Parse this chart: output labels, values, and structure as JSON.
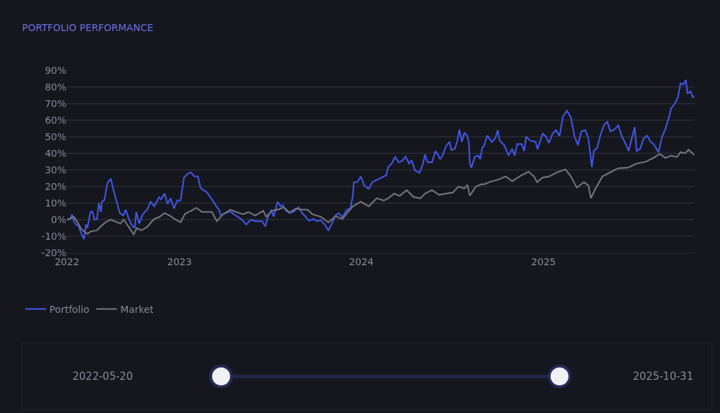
{
  "chart_data": {
    "type": "line",
    "title": "PORTFOLIO PERFORMANCE",
    "xlim": [
      "2022-05-20",
      "2025-10-31"
    ],
    "xticks": [
      {
        "value": "2022-05-20",
        "label": "2022"
      },
      {
        "value": "2023-01-01",
        "label": "2023"
      },
      {
        "value": "2024-01-01",
        "label": "2024"
      },
      {
        "value": "2025-01-01",
        "label": "2025"
      }
    ],
    "ylim": [
      -20,
      90
    ],
    "yticks": [
      {
        "value": -20,
        "label": "-20%"
      },
      {
        "value": -10,
        "label": "-10%"
      },
      {
        "value": 0,
        "label": "0%"
      },
      {
        "value": 10,
        "label": "10%"
      },
      {
        "value": 20,
        "label": "20%"
      },
      {
        "value": 30,
        "label": "30%"
      },
      {
        "value": 40,
        "label": "40%"
      },
      {
        "value": 50,
        "label": "50%"
      },
      {
        "value": 60,
        "label": "60%"
      },
      {
        "value": 70,
        "label": "70%"
      },
      {
        "value": 80,
        "label": "80%"
      },
      {
        "value": 90,
        "label": "90%"
      }
    ],
    "grid": "y",
    "legend": "bottom left",
    "marker": "none",
    "line_style": "solid",
    "annotations": [
      "2022-05-20",
      "2025-10-31"
    ],
    "series": [
      {
        "name": "Portfolio",
        "color": "#3f56e0",
        "x": [
          "2022-05-20",
          "2022-05-27",
          "2022-05-30",
          "2022-06-03",
          "2022-06-07",
          "2022-06-12",
          "2022-06-17",
          "2022-06-23",
          "2022-06-27",
          "2022-06-30",
          "2022-07-06",
          "2022-07-10",
          "2022-07-14",
          "2022-07-19",
          "2022-07-23",
          "2022-07-27",
          "2022-07-29",
          "2022-08-03",
          "2022-08-09",
          "2022-08-16",
          "2022-08-22",
          "2022-08-29",
          "2022-09-03",
          "2022-09-10",
          "2022-09-15",
          "2022-09-21",
          "2022-09-28",
          "2022-10-03",
          "2022-10-06",
          "2022-10-12",
          "2022-10-19",
          "2022-10-28",
          "2022-11-04",
          "2022-11-11",
          "2022-11-21",
          "2022-11-25",
          "2022-12-02",
          "2022-12-08",
          "2022-12-14",
          "2022-12-21",
          "2022-12-27",
          "2023-01-03",
          "2023-01-10",
          "2023-01-17",
          "2023-01-24",
          "2023-01-31",
          "2023-02-07",
          "2023-02-12",
          "2023-02-18",
          "2023-02-25",
          "2023-03-07",
          "2023-03-16",
          "2023-03-21",
          "2023-03-25",
          "2023-04-03",
          "2023-04-13",
          "2023-04-20",
          "2023-04-29",
          "2023-05-06",
          "2023-05-15",
          "2023-05-24",
          "2023-06-02",
          "2023-06-16",
          "2023-06-22",
          "2023-06-27",
          "2023-07-04",
          "2023-07-09",
          "2023-07-17",
          "2023-07-23",
          "2023-07-27",
          "2023-08-03",
          "2023-08-10",
          "2023-08-17",
          "2023-08-28",
          "2023-09-04",
          "2023-09-11",
          "2023-09-18",
          "2023-09-27",
          "2023-10-04",
          "2023-10-11",
          "2023-10-18",
          "2023-10-27",
          "2023-11-03",
          "2023-11-10",
          "2023-11-17",
          "2023-11-24",
          "2023-12-03",
          "2023-12-10",
          "2023-12-15",
          "2023-12-17",
          "2023-12-24",
          "2023-12-31",
          "2024-01-07",
          "2024-01-16",
          "2024-01-23",
          "2024-02-01",
          "2024-02-11",
          "2024-02-20",
          "2024-02-24",
          "2024-03-02",
          "2024-03-09",
          "2024-03-16",
          "2024-03-23",
          "2024-03-30",
          "2024-04-06",
          "2024-04-11",
          "2024-04-18",
          "2024-04-27",
          "2024-05-04",
          "2024-05-08",
          "2024-05-13",
          "2024-05-22",
          "2024-05-29",
          "2024-06-03",
          "2024-06-07",
          "2024-06-12",
          "2024-06-19",
          "2024-06-26",
          "2024-06-30",
          "2024-07-07",
          "2024-07-12",
          "2024-07-16",
          "2024-07-21",
          "2024-07-26",
          "2024-08-01",
          "2024-08-04",
          "2024-08-06",
          "2024-08-09",
          "2024-08-16",
          "2024-08-23",
          "2024-08-27",
          "2024-08-31",
          "2024-09-03",
          "2024-09-10",
          "2024-09-19",
          "2024-09-26",
          "2024-10-01",
          "2024-10-05",
          "2024-10-14",
          "2024-10-23",
          "2024-10-30",
          "2024-11-04",
          "2024-11-09",
          "2024-11-18",
          "2024-11-23",
          "2024-11-27",
          "2024-12-06",
          "2024-12-16",
          "2024-12-20",
          "2024-12-30",
          "2025-01-05",
          "2025-01-12",
          "2025-01-19",
          "2025-01-26",
          "2025-02-02",
          "2025-02-09",
          "2025-02-17",
          "2025-02-25",
          "2025-03-04",
          "2025-03-11",
          "2025-03-18",
          "2025-03-26",
          "2025-04-01",
          "2025-04-05",
          "2025-04-08",
          "2025-04-12",
          "2025-04-19",
          "2025-04-26",
          "2025-05-03",
          "2025-05-09",
          "2025-05-15",
          "2025-05-22",
          "2025-05-31",
          "2025-06-07",
          "2025-06-14",
          "2025-06-21",
          "2025-06-28",
          "2025-07-03",
          "2025-07-07",
          "2025-07-14",
          "2025-07-21",
          "2025-07-28",
          "2025-08-04",
          "2025-08-10",
          "2025-08-20",
          "2025-08-27",
          "2025-09-03",
          "2025-09-09",
          "2025-09-14",
          "2025-09-21",
          "2025-09-28",
          "2025-10-03",
          "2025-10-09",
          "2025-10-14",
          "2025-10-17",
          "2025-10-23",
          "2025-10-28",
          "2025-10-31"
        ],
        "values": [
          0,
          0.4,
          3.2,
          -1,
          -3,
          -3.8,
          -7.9,
          -11.8,
          -3,
          -5,
          4.6,
          4.9,
          0,
          0.4,
          10,
          4.6,
          10.8,
          11.8,
          22,
          24.7,
          17,
          9.4,
          3.9,
          2.5,
          6,
          0.4,
          -3.8,
          -5.1,
          4.6,
          -2.4,
          3.2,
          6,
          10.8,
          8,
          13.6,
          12.2,
          15.7,
          9.4,
          12.9,
          6.7,
          11.5,
          11.5,
          25.4,
          27.5,
          28.5,
          26,
          26,
          19.2,
          17.8,
          16.4,
          12.2,
          8,
          6,
          2.5,
          3.9,
          4.9,
          3.2,
          1.5,
          0,
          -3,
          0,
          -1,
          -1,
          -4,
          1.1,
          6,
          1.8,
          10.8,
          8,
          8.8,
          5.3,
          3.9,
          4.6,
          7.4,
          3.9,
          1.8,
          -0.7,
          0.4,
          -1,
          -0.3,
          -2.4,
          -6.5,
          -2.4,
          2.5,
          3.9,
          1.5,
          6,
          6.7,
          14.3,
          22.6,
          22.6,
          26,
          20.6,
          18.5,
          22.6,
          24,
          25.4,
          26.8,
          31.7,
          33.8,
          38,
          34.6,
          35.4,
          38,
          33.8,
          35.8,
          29.6,
          28.2,
          33.8,
          39.3,
          34.6,
          34.6,
          41.4,
          39.3,
          36.5,
          38.6,
          44.2,
          47,
          42,
          42.8,
          47.6,
          54.3,
          47,
          52.5,
          50.4,
          46.3,
          33.8,
          31.3,
          38,
          38.6,
          36.5,
          43.5,
          44.2,
          50.7,
          46.9,
          49,
          53.9,
          47.6,
          44.9,
          38.6,
          42.8,
          38.6,
          45.6,
          45.6,
          41.4,
          50,
          47.6,
          46.9,
          42.4,
          51.8,
          50.4,
          46.3,
          51.8,
          53.9,
          50.4,
          62.2,
          65.7,
          61.5,
          50.4,
          44.9,
          53.3,
          54,
          49,
          39.3,
          31.7,
          41.4,
          43.5,
          51.8,
          57.4,
          59,
          53.3,
          54,
          56.8,
          50.4,
          46.3,
          41.4,
          50,
          55.8,
          41.4,
          42.8,
          49,
          50.7,
          46.9,
          45.6,
          40.7,
          50,
          54.9,
          60.8,
          67,
          69.7,
          73.9,
          82.2,
          81.5,
          84.3,
          76,
          77.4,
          73.9,
          74.6
        ]
      },
      {
        "name": "Market",
        "color": "#72727e",
        "x": [
          "2022-05-20",
          "2022-06-03",
          "2022-06-09",
          "2022-06-18",
          "2022-06-30",
          "2022-07-06",
          "2022-07-19",
          "2022-07-28",
          "2022-08-05",
          "2022-08-15",
          "2022-08-24",
          "2022-09-04",
          "2022-09-11",
          "2022-09-21",
          "2022-10-01",
          "2022-10-07",
          "2022-10-16",
          "2022-10-28",
          "2022-11-11",
          "2022-11-21",
          "2022-12-02",
          "2022-12-14",
          "2022-12-22",
          "2023-01-03",
          "2023-01-12",
          "2023-01-24",
          "2023-02-04",
          "2023-02-15",
          "2023-03-07",
          "2023-03-17",
          "2023-03-29",
          "2023-04-13",
          "2023-04-25",
          "2023-05-09",
          "2023-05-19",
          "2023-06-02",
          "2023-06-18",
          "2023-06-24",
          "2023-07-06",
          "2023-07-17",
          "2023-07-29",
          "2023-08-10",
          "2023-08-23",
          "2023-09-04",
          "2023-09-15",
          "2023-09-25",
          "2023-10-11",
          "2023-10-27",
          "2023-11-10",
          "2023-11-24",
          "2023-12-05",
          "2023-12-15",
          "2023-12-31",
          "2024-01-16",
          "2024-02-01",
          "2024-02-15",
          "2024-02-24",
          "2024-03-07",
          "2024-03-18",
          "2024-04-01",
          "2024-04-15",
          "2024-04-29",
          "2024-05-08",
          "2024-05-22",
          "2024-06-05",
          "2024-06-19",
          "2024-07-03",
          "2024-07-14",
          "2024-07-26",
          "2024-08-01",
          "2024-08-06",
          "2024-08-18",
          "2024-08-31",
          "2024-09-03",
          "2024-09-14",
          "2024-10-03",
          "2024-10-17",
          "2024-10-30",
          "2024-11-18",
          "2024-12-02",
          "2024-12-13",
          "2024-12-19",
          "2024-12-30",
          "2025-01-12",
          "2025-01-26",
          "2025-02-14",
          "2025-02-25",
          "2025-03-09",
          "2025-03-23",
          "2025-04-01",
          "2025-04-06",
          "2025-04-15",
          "2025-04-29",
          "2025-05-13",
          "2025-05-31",
          "2025-06-19",
          "2025-07-07",
          "2025-07-26",
          "2025-08-13",
          "2025-08-22",
          "2025-09-03",
          "2025-09-14",
          "2025-09-26",
          "2025-10-03",
          "2025-10-12",
          "2025-10-19",
          "2025-10-31"
        ],
        "values": [
          0,
          1.5,
          -1,
          -5.8,
          -8.6,
          -7.2,
          -6.5,
          -3.8,
          -1.7,
          0,
          -1,
          -2.4,
          0,
          -4.4,
          -9,
          -5.1,
          -6.5,
          -4.4,
          0.4,
          1.5,
          3.9,
          2.1,
          0.4,
          -1.7,
          3.5,
          5.3,
          7.1,
          4.6,
          4.6,
          -1,
          3.2,
          6,
          4.6,
          3.2,
          4.6,
          2.5,
          5.3,
          1.8,
          5.3,
          6,
          7.4,
          4.3,
          6.7,
          6,
          6,
          3.2,
          1.8,
          -1.7,
          2.1,
          0.4,
          4.6,
          8,
          10.8,
          8,
          12.9,
          11.5,
          12.9,
          15.7,
          14.3,
          17.8,
          13.6,
          12.9,
          15.7,
          17.8,
          15,
          15.7,
          16.4,
          19.9,
          18.8,
          21,
          14.4,
          19.9,
          21.5,
          21.2,
          22.6,
          24.3,
          26,
          23.2,
          26.8,
          28.9,
          26,
          22.6,
          25.4,
          26,
          28.2,
          30.3,
          26,
          19.2,
          22.6,
          20.6,
          12.9,
          18.5,
          26,
          28.2,
          31,
          31.3,
          33.8,
          35,
          37.8,
          39.7,
          37.2,
          38.6,
          37.8,
          40.7,
          40,
          42.2,
          39
        ]
      }
    ]
  }
}
